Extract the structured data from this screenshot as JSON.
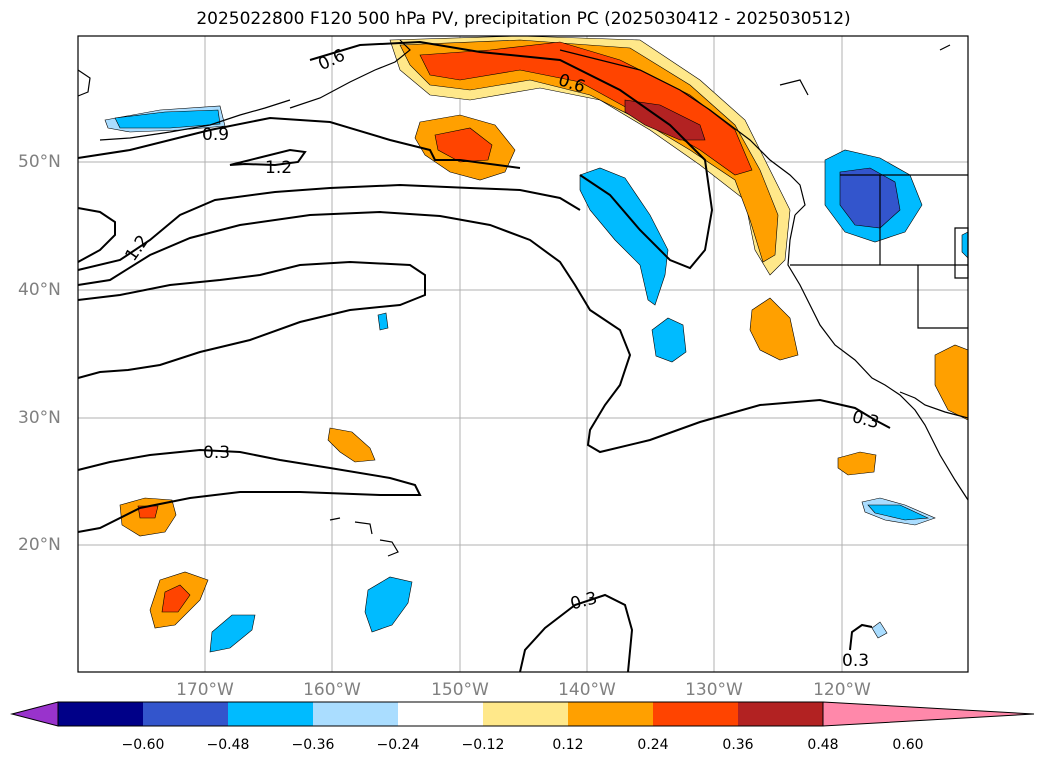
{
  "title": "2025022800 F120 500 hPa PV, precipitation PC (2025030412 - 2025030512)",
  "lat_labels": [
    "50°N",
    "40°N",
    "30°N",
    "20°N"
  ],
  "lon_labels": [
    "170°W",
    "160°W",
    "150°W",
    "140°W",
    "130°W",
    "120°W"
  ],
  "contour_labels": [
    "0.6",
    "0.6",
    "0.9",
    "1.2",
    "1.2",
    "0.3",
    "0.3",
    "0.3",
    "0.3"
  ],
  "colorbar": {
    "ticks": [
      "−0.60",
      "−0.48",
      "−0.36",
      "−0.24",
      "−0.12",
      "0.12",
      "0.24",
      "0.36",
      "0.48",
      "0.60"
    ],
    "colors": [
      "#9933cc",
      "#000088",
      "#3355cc",
      "#00bbff",
      "#aaddff",
      "#ffffff",
      "#ffe88a",
      "#ffa000",
      "#ff4400",
      "#b22222",
      "#ff88aa"
    ]
  }
}
